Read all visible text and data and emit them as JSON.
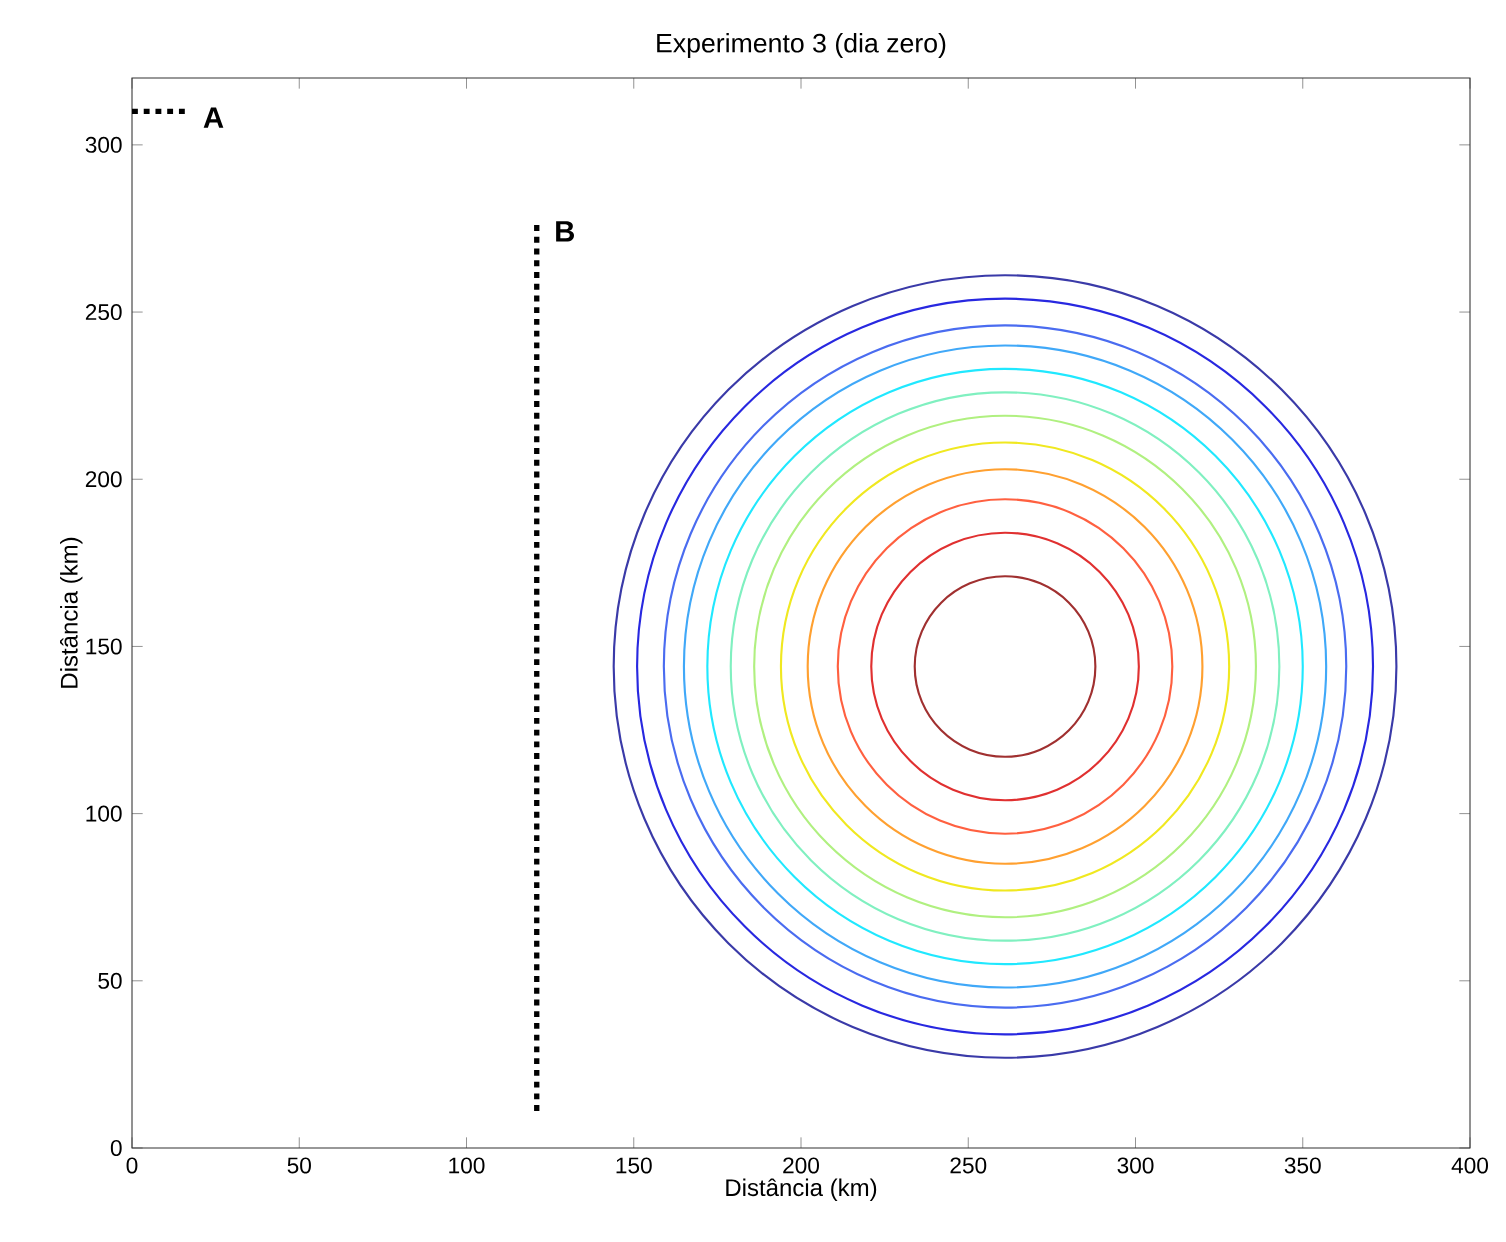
{
  "chart_data": {
    "type": "line",
    "title": "Experimento 3 (dia zero)",
    "xlabel": "Distância (km)",
    "ylabel": "Distância (km)",
    "xlim": [
      0,
      400
    ],
    "ylim": [
      0,
      320
    ],
    "xticks": [
      0,
      50,
      100,
      150,
      200,
      250,
      300,
      350,
      400
    ],
    "yticks": [
      0,
      50,
      100,
      150,
      200,
      250,
      300
    ],
    "series": [
      {
        "name": "A",
        "color": "#000000",
        "line_style": "dotted",
        "x": [
          0,
          16
        ],
        "values": [
          310,
          310
        ]
      },
      {
        "name": "B",
        "color": "#000000",
        "line_style": "dotted",
        "x": [
          121,
          121
        ],
        "values": [
          276,
          11
        ]
      }
    ]
  }
}
